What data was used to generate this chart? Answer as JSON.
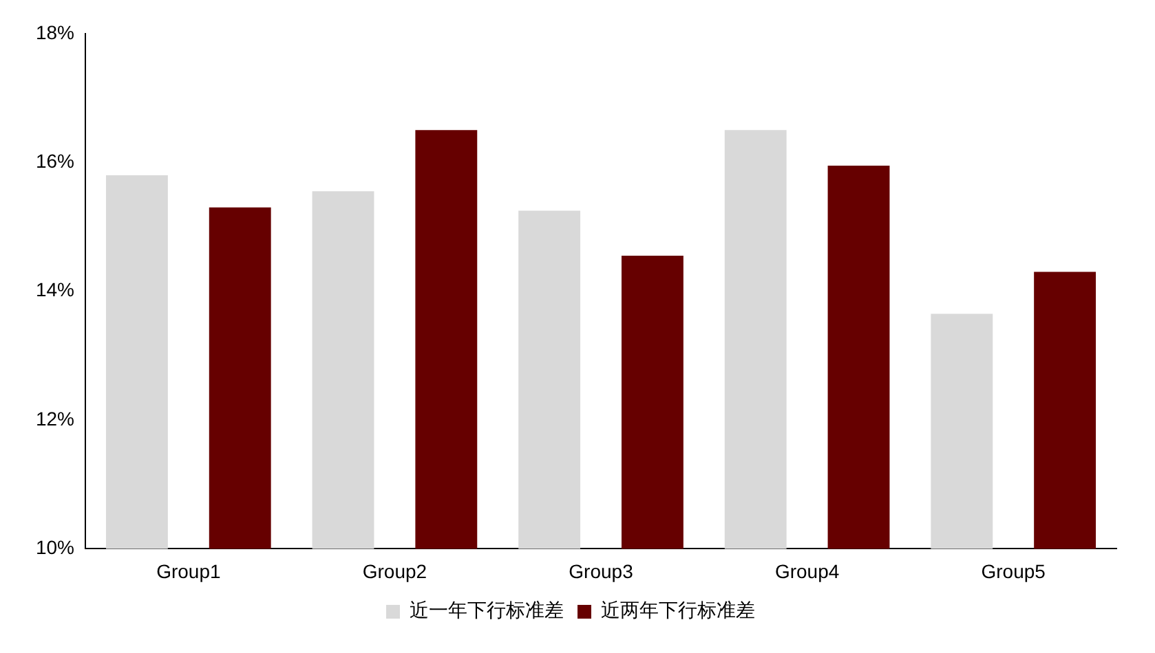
{
  "chart_data": {
    "type": "bar",
    "categories": [
      "Group1",
      "Group2",
      "Group3",
      "Group4",
      "Group5"
    ],
    "series": [
      {
        "name": "近一年下行标准差",
        "color": "#d9d9d9",
        "values": [
          15.8,
          15.55,
          15.25,
          16.5,
          13.65
        ]
      },
      {
        "name": "近两年下行标准差",
        "color": "#660000",
        "values": [
          15.3,
          16.5,
          14.55,
          15.95,
          14.3
        ]
      }
    ],
    "ylim": [
      10,
      18
    ],
    "yticks": [
      {
        "value": 10,
        "label": "10%"
      },
      {
        "value": 12,
        "label": "12%"
      },
      {
        "value": 14,
        "label": "14%"
      },
      {
        "value": 16,
        "label": "16%"
      },
      {
        "value": 18,
        "label": "18%"
      }
    ],
    "grid": false,
    "legend": "bottom"
  }
}
